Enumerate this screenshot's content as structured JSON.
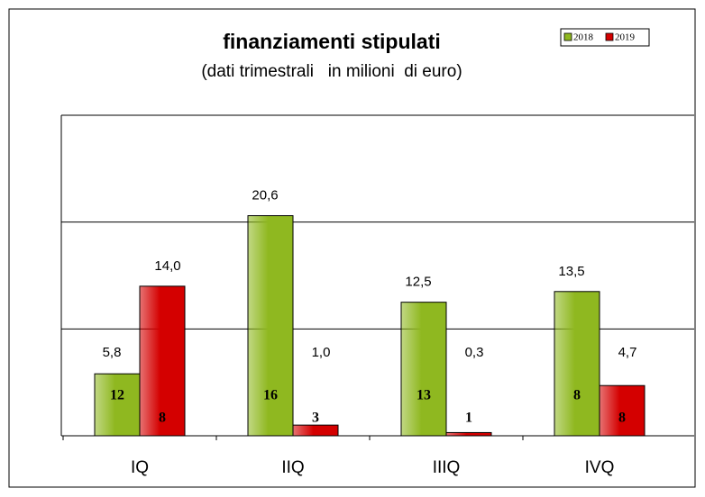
{
  "chart_data": {
    "type": "bar",
    "title": "finanziamenti stipulati",
    "subtitle": "(dati trimestrali   in milioni  di euro)",
    "categories": [
      "IQ",
      "IIQ",
      "IIIQ",
      "IVQ"
    ],
    "series": [
      {
        "name": "2018",
        "color": "#8fb820",
        "values": [
          5.8,
          20.6,
          12.5,
          13.5
        ],
        "value_labels": [
          "5,8",
          "20,6",
          "12,5",
          "13,5"
        ],
        "inner_labels": [
          12,
          16,
          13,
          8
        ]
      },
      {
        "name": "2019",
        "color": "#d40000",
        "values": [
          14.0,
          1.0,
          0.3,
          4.7
        ],
        "value_labels": [
          "14,0",
          "1,0",
          "0,3",
          "4,7"
        ],
        "inner_labels": [
          8,
          3,
          1,
          8
        ]
      }
    ],
    "ylim": [
      0,
      30
    ],
    "yticks": [
      0,
      10,
      20,
      30
    ],
    "grid": true,
    "legend": "top-right"
  }
}
